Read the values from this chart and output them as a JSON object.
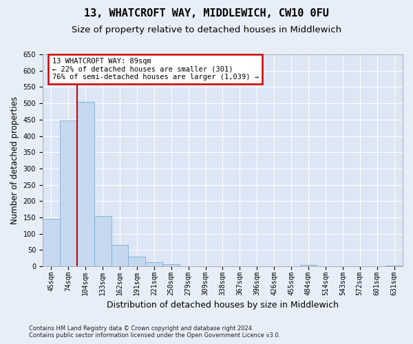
{
  "title": "13, WHATCROFT WAY, MIDDLEWICH, CW10 0FU",
  "subtitle": "Size of property relative to detached houses in Middlewich",
  "xlabel": "Distribution of detached houses by size in Middlewich",
  "ylabel": "Number of detached properties",
  "footer_line1": "Contains HM Land Registry data © Crown copyright and database right 2024.",
  "footer_line2": "Contains public sector information licensed under the Open Government Licence v3.0.",
  "bins": [
    "45sqm",
    "74sqm",
    "104sqm",
    "133sqm",
    "162sqm",
    "191sqm",
    "221sqm",
    "250sqm",
    "279sqm",
    "309sqm",
    "338sqm",
    "367sqm",
    "396sqm",
    "426sqm",
    "455sqm",
    "484sqm",
    "514sqm",
    "543sqm",
    "572sqm",
    "601sqm",
    "631sqm"
  ],
  "bar_values": [
    145,
    447,
    504,
    155,
    65,
    30,
    13,
    7,
    0,
    0,
    0,
    0,
    0,
    0,
    0,
    5,
    0,
    0,
    0,
    0,
    2
  ],
  "bar_color": "#c5d8ef",
  "bar_edge_color": "#7badd4",
  "annotation_text": "13 WHATCROFT WAY: 89sqm\n← 22% of detached houses are smaller (301)\n76% of semi-detached houses are larger (1,039) →",
  "annotation_box_color": "white",
  "annotation_box_edge_color": "#cc0000",
  "vline_color": "#cc0000",
  "ylim": [
    0,
    650
  ],
  "yticks": [
    0,
    50,
    100,
    150,
    200,
    250,
    300,
    350,
    400,
    450,
    500,
    550,
    600,
    650
  ],
  "bg_color": "#e8eef8",
  "plot_bg_color": "#dce6f5",
  "grid_color": "white",
  "title_fontsize": 11,
  "subtitle_fontsize": 9.5,
  "xlabel_fontsize": 9,
  "ylabel_fontsize": 8.5,
  "tick_fontsize": 7,
  "annotation_fontsize": 7.5,
  "footer_fontsize": 6
}
